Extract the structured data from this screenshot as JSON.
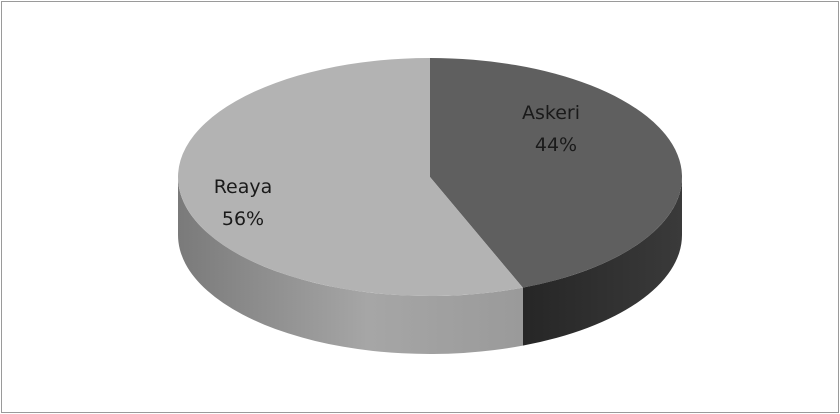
{
  "chart_data": {
    "type": "pie",
    "categories": [
      "Askeri",
      "Reaya"
    ],
    "values": [
      44,
      56
    ],
    "value_labels": [
      "44%",
      "56%"
    ],
    "colors": [
      "#5f5f5f",
      "#b3b3b3"
    ],
    "side_colors": [
      "#2e2e2e",
      "#8a8a8a"
    ],
    "title": "",
    "legend": "none",
    "three_d": true
  }
}
